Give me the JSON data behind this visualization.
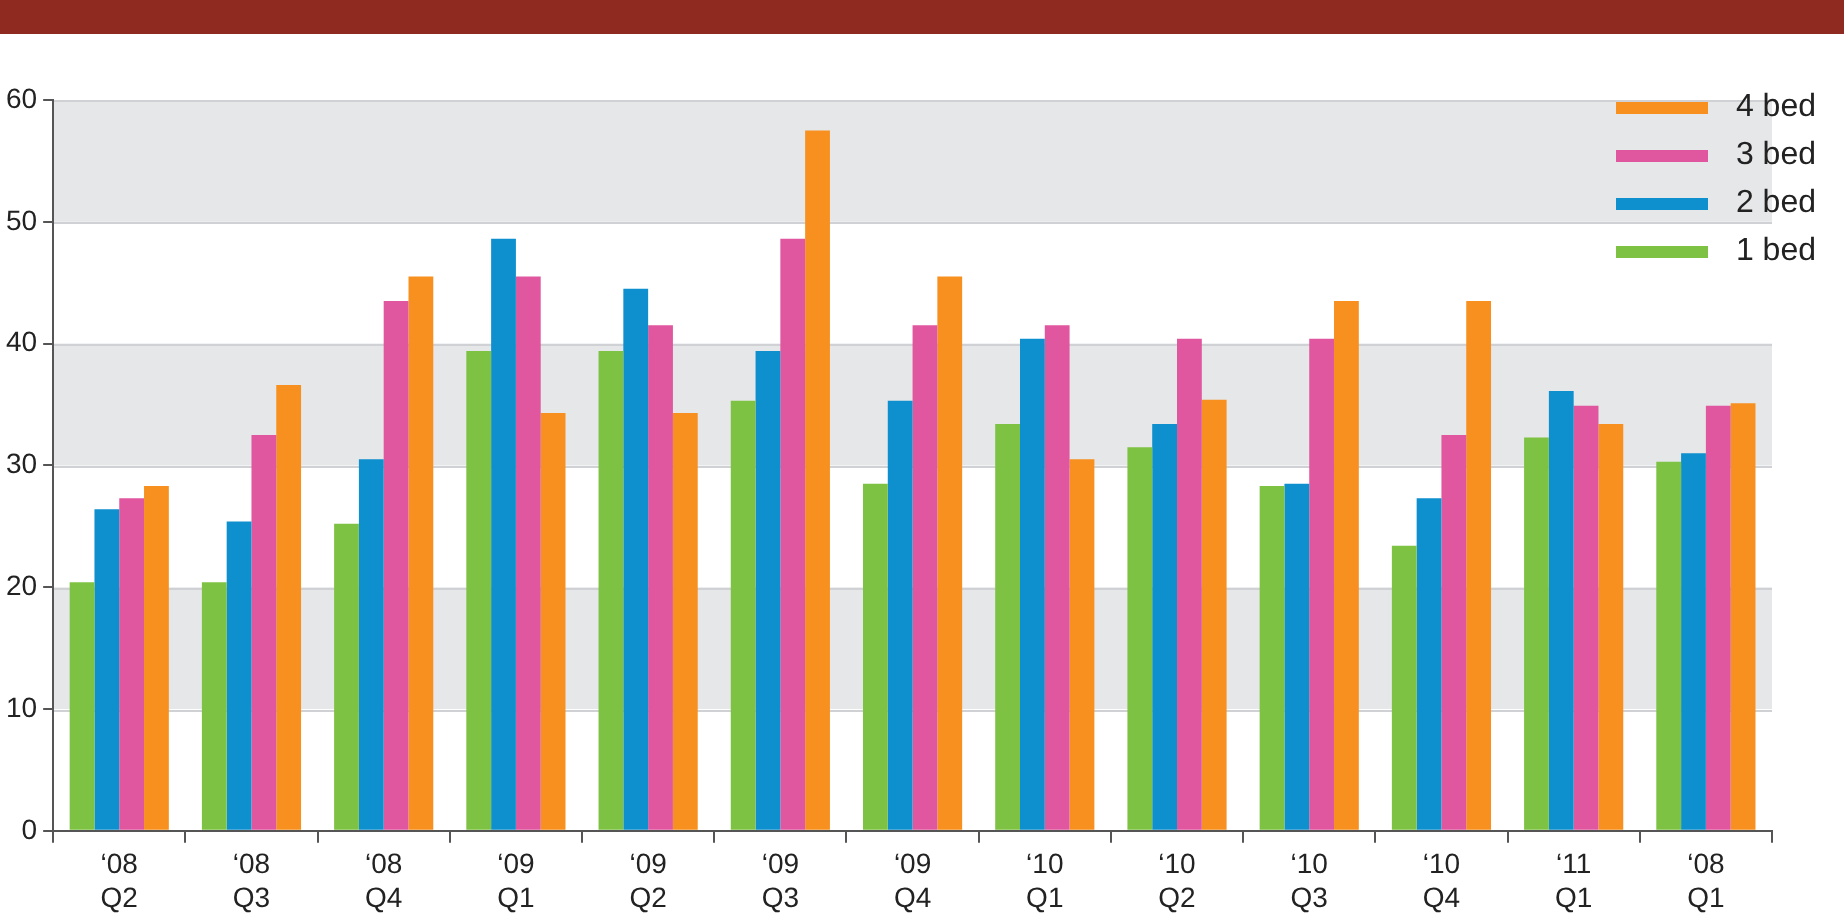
{
  "chart_data": {
    "type": "bar",
    "categories": [
      "‘08\nQ2",
      "‘08\nQ3",
      "‘08\nQ4",
      "‘09\nQ1",
      "‘09\nQ2",
      "‘09\nQ3",
      "‘09\nQ4",
      "‘10\nQ1",
      "‘10\nQ2",
      "‘10\nQ3",
      "‘10\nQ4",
      "‘11\nQ1",
      "‘08\nQ1"
    ],
    "series": [
      {
        "name": "1 bed",
        "color": "#7dc242",
        "values": [
          20.4,
          20.4,
          25.2,
          39.4,
          39.4,
          35.3,
          28.5,
          33.4,
          31.5,
          28.3,
          23.4,
          32.3,
          30.3
        ]
      },
      {
        "name": "2 bed",
        "color": "#0e8fce",
        "values": [
          26.4,
          25.4,
          30.5,
          48.6,
          44.5,
          39.4,
          35.3,
          40.4,
          33.4,
          28.5,
          27.3,
          36.1,
          31
        ]
      },
      {
        "name": "3 bed",
        "color": "#e0569f",
        "values": [
          27.3,
          32.5,
          43.5,
          45.5,
          41.5,
          48.6,
          41.5,
          41.5,
          40.4,
          40.4,
          32.5,
          34.9,
          34.9
        ]
      },
      {
        "name": "4 bed",
        "color": "#f7901e",
        "values": [
          28.3,
          36.6,
          45.5,
          34.3,
          34.3,
          57.5,
          45.5,
          30.5,
          35.4,
          43.5,
          43.5,
          33.4,
          35.1
        ]
      }
    ],
    "ylim": [
      0,
      60
    ],
    "yticks": [
      0,
      10,
      20,
      30,
      40,
      50,
      60
    ],
    "grid": "y",
    "legend": "top right"
  }
}
